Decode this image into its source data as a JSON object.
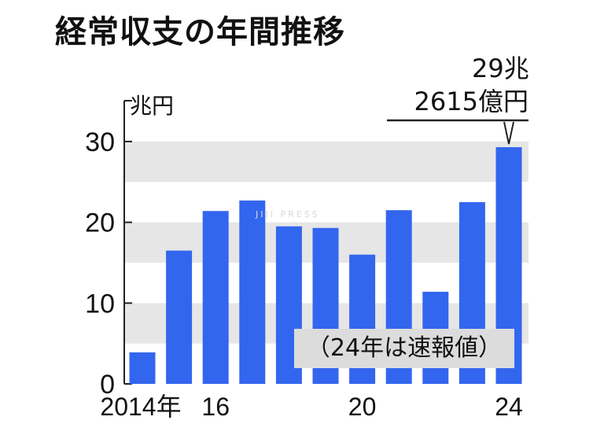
{
  "title": "経常収支の年間推移",
  "watermark": "JIJI PRESS",
  "note": "（24年は速報値）",
  "colors": {
    "bar": "#3366ee",
    "band": "#e6e6e6",
    "axis": "#222222",
    "background": "#ffffff"
  },
  "chart_data": {
    "type": "bar",
    "title": "経常収支の年間推移",
    "ylabel": "兆円",
    "xlabel": "",
    "ylim": [
      0,
      35
    ],
    "yticks": [
      "0",
      "10",
      "20",
      "30"
    ],
    "x": [
      2014,
      2015,
      2016,
      2017,
      2018,
      2019,
      2020,
      2021,
      2022,
      2023,
      2024
    ],
    "values": [
      3.9,
      16.5,
      21.4,
      22.7,
      19.5,
      19.3,
      16.0,
      21.5,
      11.4,
      22.5,
      29.3
    ],
    "xtick_labels": [
      {
        "index": 0,
        "label": "2014年"
      },
      {
        "index": 2,
        "label": "16"
      },
      {
        "index": 6,
        "label": "20"
      },
      {
        "index": 10,
        "label": "24"
      }
    ],
    "annotation": {
      "index": 10,
      "line1": "29兆",
      "line2": "2615億円"
    },
    "grid": "alternating horizontal bands",
    "legend": "none"
  }
}
